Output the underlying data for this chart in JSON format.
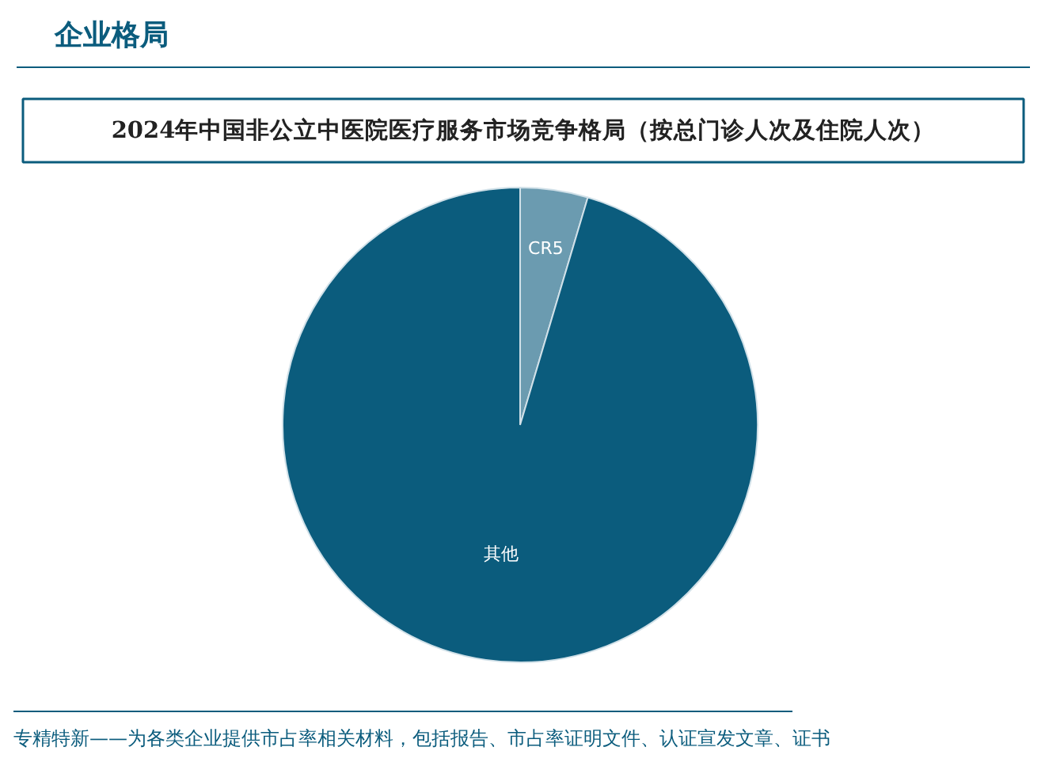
{
  "chart_data": {
    "type": "pie",
    "title": "2024年中国非公立中医院医疗服务市场竞争格局（按总门诊人次及住院人次）",
    "categories": [
      "CR5",
      "其他"
    ],
    "values": [
      4.6,
      95.4
    ],
    "colors": [
      "#6b9bb0",
      "#0b5c7d"
    ],
    "annotations": [
      "企业格局",
      "专精特新——为各类企业提供市占率相关材料，包括报告、市占率证明文件、认证宣发文章、证书"
    ]
  }
}
